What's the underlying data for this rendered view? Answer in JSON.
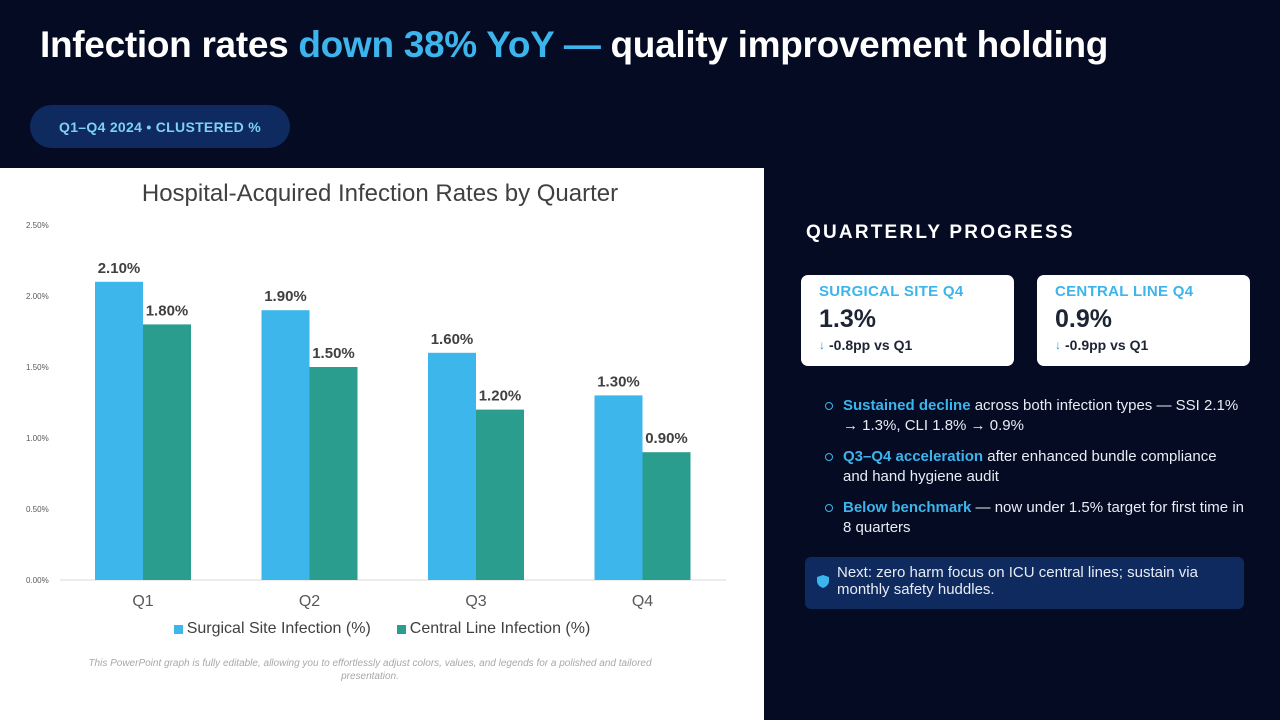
{
  "header": {
    "title_prefix": "Infection rates ",
    "title_accent": "down 38% YoY —",
    "title_suffix": " quality improvement holding",
    "badge": "Q1–Q4 2024 • CLUSTERED %"
  },
  "chart_data": {
    "type": "bar",
    "title": "Hospital-Acquired Infection Rates by Quarter",
    "categories": [
      "Q1",
      "Q2",
      "Q3",
      "Q4"
    ],
    "series": [
      {
        "name": "Surgical Site Infection (%)",
        "values": [
          2.1,
          1.9,
          1.6,
          1.3
        ],
        "labels": [
          "2.10%",
          "1.90%",
          "1.60%",
          "1.30%"
        ],
        "color": "#3db6ec"
      },
      {
        "name": "Central Line Infection (%)",
        "values": [
          1.8,
          1.5,
          1.2,
          0.9
        ],
        "labels": [
          "1.80%",
          "1.50%",
          "1.20%",
          "0.90%"
        ],
        "color": "#2a9d8f"
      }
    ],
    "ylim": [
      0,
      2.5
    ],
    "yticks": [
      0,
      0.5,
      1.0,
      1.5,
      2.0,
      2.5
    ],
    "ytick_labels": [
      "0.00%",
      "0.50%",
      "1.00%",
      "1.50%",
      "2.00%",
      "2.50%"
    ],
    "xlabel": "",
    "ylabel": "",
    "grid": false,
    "legend": "bottom"
  },
  "footnote": "This PowerPoint graph is fully editable, allowing you to effortlessly adjust colors, values, and legends for a polished and tailored presentation.",
  "side": {
    "heading": "QUARTERLY PROGRESS",
    "kpis": [
      {
        "label": "SURGICAL SITE Q4",
        "value": "1.3%",
        "delta": "-0.8pp vs Q1",
        "icon": "arrow-down-icon"
      },
      {
        "label": "CENTRAL LINE Q4",
        "value": "0.9%",
        "delta": "-0.9pp vs Q1",
        "icon": "arrow-down-icon"
      }
    ],
    "bullets": [
      {
        "highlight": "Sustained decline",
        "text": " across both infection types — SSI 2.1% → 1.3%, CLI 1.8% → 0.9%"
      },
      {
        "highlight": "Q3–Q4 acceleration",
        "text": " after enhanced bundle compliance and hand hygiene audit"
      },
      {
        "highlight": "Below benchmark",
        "text": " — now under 1.5% target for first time in 8 quarters"
      }
    ],
    "callout": "Next: zero harm focus on ICU central lines; sustain via monthly safety huddles.",
    "callout_icon": "shield-icon"
  },
  "colors": {
    "background": "#050b22",
    "accent": "#3cb4ec",
    "panel": "#0e2a5f"
  }
}
